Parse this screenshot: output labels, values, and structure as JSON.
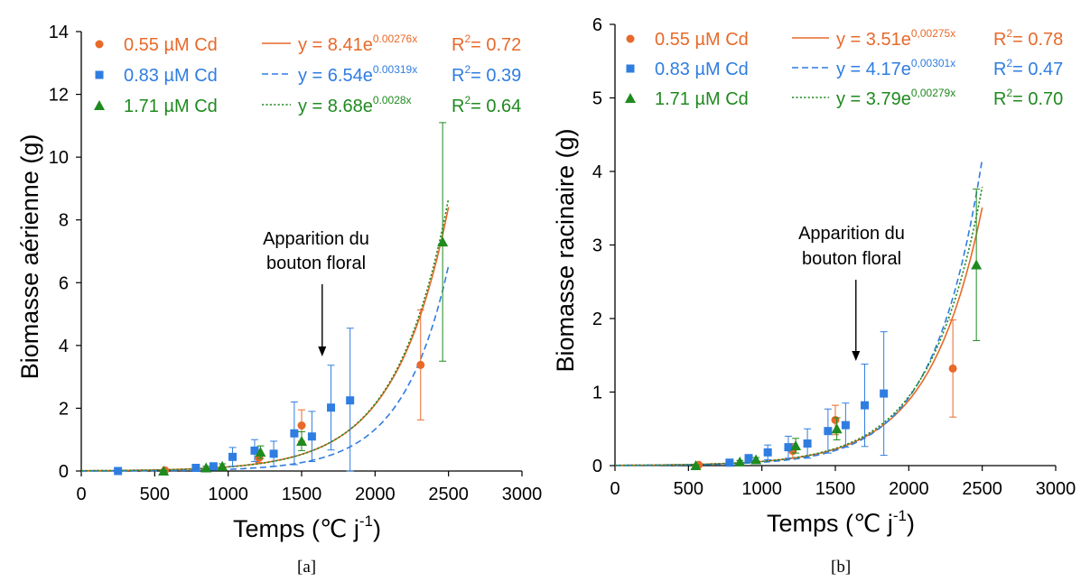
{
  "colors": {
    "s055": "#e8692a",
    "s083": "#2f7de1",
    "s171": "#1f8a1f"
  },
  "arrow_label": [
    "Apparition du",
    "bouton floral"
  ],
  "captions": [
    "[a]",
    "[b]"
  ],
  "chart_data": [
    {
      "type": "scatter",
      "xlabel": "Temps (℃ j",
      "xlabel_sup": "-1",
      "xlabel_end": ")",
      "ylabel": "Biomasse aérienne (g)",
      "xlim": [
        0,
        3000
      ],
      "ylim": [
        0,
        14
      ],
      "xticks": [
        0,
        500,
        1000,
        1500,
        2000,
        2500,
        3000
      ],
      "yticks": [
        0,
        2,
        4,
        6,
        8,
        10,
        12,
        14
      ],
      "grid": false,
      "legend_position": "top-left",
      "arrow_x": 1640,
      "series": [
        {
          "name": "0.55 µM Cd",
          "marker": "circle",
          "color_key": "s055",
          "points": [
            {
              "x": 570,
              "y": 0.02,
              "err": 0.01
            },
            {
              "x": 1210,
              "y": 0.42,
              "err": 0.15
            },
            {
              "x": 1500,
              "y": 1.45,
              "err": 0.5
            },
            {
              "x": 2310,
              "y": 3.38,
              "err": 1.75
            }
          ],
          "fit": {
            "a": 8.41,
            "b": 0.00276,
            "equation": "y = 8.41e",
            "exponent": "0.00276x",
            "r2_prefix": "R",
            "r2_sup": "2",
            "r2_value": "= 0.72",
            "style": "solid"
          }
        },
        {
          "name": "0.83 µM Cd",
          "marker": "square",
          "color_key": "s083",
          "points": [
            {
              "x": 250,
              "y": 0.0,
              "err": 0.0
            },
            {
              "x": 780,
              "y": 0.1,
              "err": 0.05
            },
            {
              "x": 900,
              "y": 0.15,
              "err": 0.08
            },
            {
              "x": 1030,
              "y": 0.45,
              "err": 0.3
            },
            {
              "x": 1180,
              "y": 0.65,
              "err": 0.35
            },
            {
              "x": 1310,
              "y": 0.55,
              "err": 0.4
            },
            {
              "x": 1450,
              "y": 1.2,
              "err": 1.0
            },
            {
              "x": 1570,
              "y": 1.1,
              "err": 0.8
            },
            {
              "x": 1700,
              "y": 2.02,
              "err": 1.35
            },
            {
              "x": 1830,
              "y": 2.25,
              "err": 2.3
            }
          ],
          "fit": {
            "a": 6.54,
            "b": 0.00319,
            "equation": "y = 6.54e",
            "exponent": "0.00319x",
            "r2_prefix": "R",
            "r2_sup": "2",
            "r2_value": "= 0.39",
            "style": "dashed"
          }
        },
        {
          "name": "1.71 µM Cd",
          "marker": "triangle",
          "color_key": "s171",
          "points": [
            {
              "x": 560,
              "y": 0.0,
              "err": 0.02
            },
            {
              "x": 850,
              "y": 0.1,
              "err": 0.05
            },
            {
              "x": 960,
              "y": 0.15,
              "err": 0.08
            },
            {
              "x": 1220,
              "y": 0.6,
              "err": 0.2
            },
            {
              "x": 1500,
              "y": 0.95,
              "err": 0.3
            },
            {
              "x": 2460,
              "y": 7.3,
              "err": 3.8
            }
          ],
          "fit": {
            "a": 8.68,
            "b": 0.0028,
            "equation": "y = 8.68e",
            "exponent": "0.0028x",
            "r2_prefix": "R",
            "r2_sup": "2",
            "r2_value": "= 0.64",
            "style": "dotted"
          }
        }
      ]
    },
    {
      "type": "scatter",
      "xlabel": "Temps (℃ j",
      "xlabel_sup": "-1",
      "xlabel_end": ")",
      "ylabel": "Biomasse racinaire (g)",
      "xlim": [
        0,
        3000
      ],
      "ylim": [
        0,
        6
      ],
      "xticks": [
        0,
        500,
        1000,
        1500,
        2000,
        2500,
        3000
      ],
      "yticks": [
        0,
        1,
        2,
        3,
        4,
        5,
        6
      ],
      "grid": false,
      "legend_position": "top-left",
      "arrow_x": 1640,
      "series": [
        {
          "name": "0.55 µM Cd",
          "marker": "circle",
          "color_key": "s055",
          "points": [
            {
              "x": 570,
              "y": 0.01,
              "err": 0.01
            },
            {
              "x": 1210,
              "y": 0.2,
              "err": 0.1
            },
            {
              "x": 1500,
              "y": 0.62,
              "err": 0.2
            },
            {
              "x": 2300,
              "y": 1.32,
              "err": 0.66
            }
          ],
          "fit": {
            "a": 3.51,
            "b": 0.00275,
            "equation": "y = 3.51e",
            "exponent": "0,00275x",
            "r2_prefix": "R",
            "r2_sup": "2",
            "r2_value": "= 0.78",
            "style": "solid"
          }
        },
        {
          "name": "0.83 µM Cd",
          "marker": "square",
          "color_key": "s083",
          "points": [
            {
              "x": 780,
              "y": 0.04,
              "err": 0.02
            },
            {
              "x": 910,
              "y": 0.1,
              "err": 0.05
            },
            {
              "x": 1040,
              "y": 0.18,
              "err": 0.1
            },
            {
              "x": 1180,
              "y": 0.25,
              "err": 0.15
            },
            {
              "x": 1310,
              "y": 0.3,
              "err": 0.2
            },
            {
              "x": 1450,
              "y": 0.47,
              "err": 0.3
            },
            {
              "x": 1570,
              "y": 0.55,
              "err": 0.3
            },
            {
              "x": 1700,
              "y": 0.82,
              "err": 0.56
            },
            {
              "x": 1830,
              "y": 0.98,
              "err": 0.84
            }
          ],
          "fit": {
            "a": 4.17,
            "b": 0.00301,
            "equation": "y = 4.17e",
            "exponent": "0,00301x",
            "r2_prefix": "R",
            "r2_sup": "2",
            "r2_value": "= 0.47",
            "style": "dashed"
          }
        },
        {
          "name": "1.71 µM Cd",
          "marker": "triangle",
          "color_key": "s171",
          "points": [
            {
              "x": 550,
              "y": 0.0,
              "err": 0.01
            },
            {
              "x": 850,
              "y": 0.05,
              "err": 0.02
            },
            {
              "x": 960,
              "y": 0.08,
              "err": 0.03
            },
            {
              "x": 1230,
              "y": 0.27,
              "err": 0.1
            },
            {
              "x": 1510,
              "y": 0.5,
              "err": 0.15
            },
            {
              "x": 2460,
              "y": 2.73,
              "err": 1.03
            }
          ],
          "fit": {
            "a": 3.79,
            "b": 0.00279,
            "equation": "y = 3.79e",
            "exponent": "0,00279x",
            "r2_prefix": "R",
            "r2_sup": "2",
            "r2_value": "= 0.70",
            "style": "dotted"
          }
        }
      ]
    }
  ]
}
